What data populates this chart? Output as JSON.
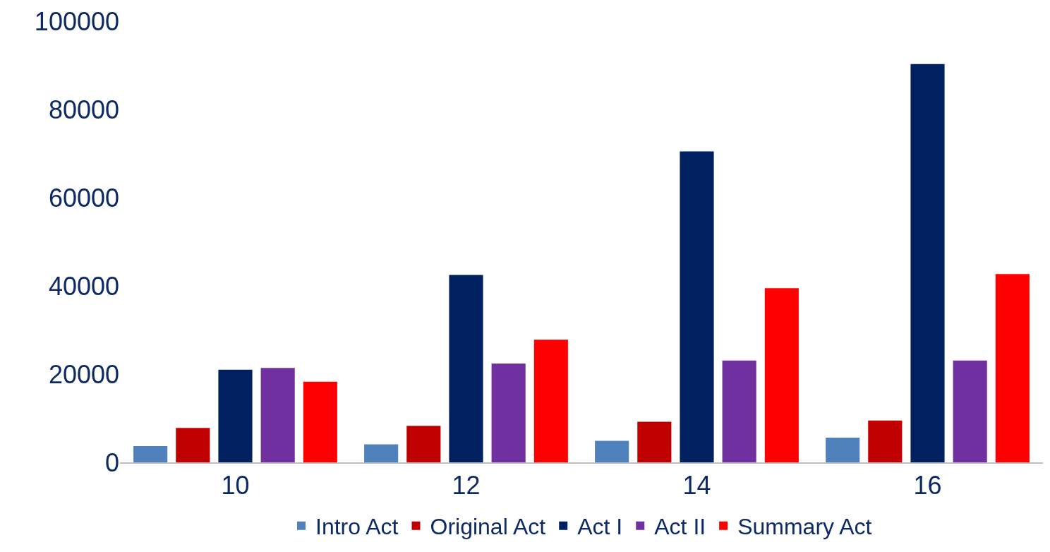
{
  "chart_data": {
    "type": "bar",
    "categories": [
      "10",
      "12",
      "14",
      "16"
    ],
    "series": [
      {
        "name": "Intro Act",
        "color": "#4f81bd",
        "values": [
          3700,
          4100,
          4900,
          5600
        ]
      },
      {
        "name": "Original Act",
        "color": "#c00000",
        "values": [
          7800,
          8300,
          9200,
          9500
        ]
      },
      {
        "name": "Act I",
        "color": "#002060",
        "values": [
          21000,
          42500,
          70500,
          90300
        ]
      },
      {
        "name": "Act II",
        "color": "#7030a0",
        "values": [
          21400,
          22400,
          23100,
          23100
        ]
      },
      {
        "name": "Summary Act",
        "color": "#ff0000",
        "values": [
          18300,
          27800,
          39500,
          42700
        ]
      }
    ],
    "ylim": [
      0,
      100000
    ],
    "yticks": [
      0,
      20000,
      40000,
      60000,
      80000,
      100000
    ],
    "legend": "bottom"
  }
}
